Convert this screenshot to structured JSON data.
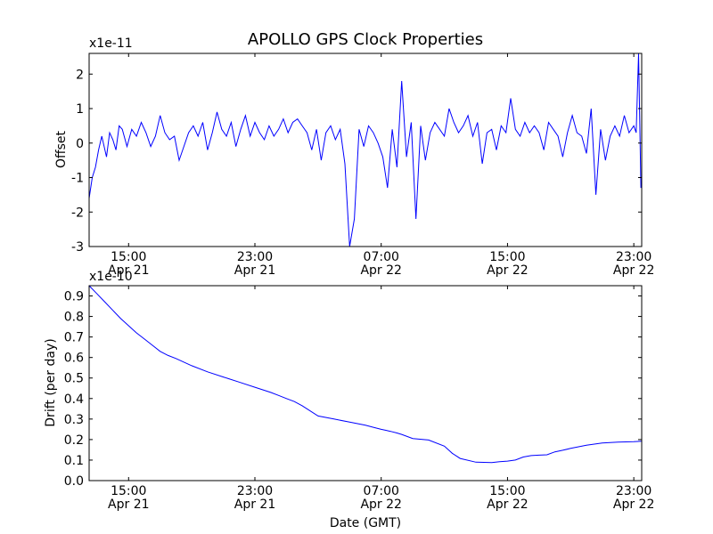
{
  "figure": {
    "title": "APOLLO GPS Clock Properties",
    "xlabel": "Date (GMT)",
    "line_color": "#0000ff"
  },
  "chart_data": [
    {
      "type": "line",
      "id": "offset",
      "title": "APOLLO GPS Clock Properties",
      "ylabel": "Offset",
      "xlabel": "",
      "scale_label": "x1e-11",
      "x_unit": "hours since 2:00 GMT Apr 21 (x-axis spans 12:30 Apr 21 to 23:30 Apr 22)",
      "xlim": [
        10.5,
        45.5
      ],
      "ylim": [
        -3,
        2.6
      ],
      "yticks": [
        -3,
        -2,
        -1,
        0,
        1,
        2
      ],
      "ytick_labels": [
        "-3",
        "-2",
        "-1",
        "0",
        "1",
        "2"
      ],
      "xticks": [
        {
          "x": 13,
          "time": "15:00",
          "date": "Apr 21"
        },
        {
          "x": 21,
          "time": "23:00",
          "date": "Apr 21"
        },
        {
          "x": 29,
          "time": "07:00",
          "date": "Apr 22"
        },
        {
          "x": 37,
          "time": "15:00",
          "date": "Apr 22"
        },
        {
          "x": 45,
          "time": "23:00",
          "date": "Apr 22"
        }
      ],
      "series": [
        {
          "name": "offset",
          "x": [
            10.5,
            10.7,
            10.9,
            11.1,
            11.3,
            11.6,
            11.8,
            12.0,
            12.2,
            12.4,
            12.6,
            12.9,
            13.2,
            13.5,
            13.8,
            14.1,
            14.4,
            14.7,
            15.0,
            15.3,
            15.6,
            15.9,
            16.2,
            16.5,
            16.8,
            17.1,
            17.4,
            17.7,
            18.0,
            18.3,
            18.6,
            18.9,
            19.2,
            19.5,
            19.8,
            20.1,
            20.4,
            20.7,
            21.0,
            21.3,
            21.6,
            21.9,
            22.2,
            22.5,
            22.8,
            23.1,
            23.4,
            23.7,
            24.0,
            24.3,
            24.6,
            24.9,
            25.2,
            25.5,
            25.8,
            26.1,
            26.4,
            26.7,
            27.0,
            27.3,
            27.6,
            27.9,
            28.2,
            28.5,
            28.8,
            29.1,
            29.4,
            29.7,
            30.0,
            30.3,
            30.6,
            30.9,
            31.2,
            31.5,
            31.8,
            32.1,
            32.4,
            32.7,
            33.0,
            33.3,
            33.6,
            33.9,
            34.2,
            34.5,
            34.8,
            35.1,
            35.4,
            35.7,
            36.0,
            36.3,
            36.6,
            36.9,
            37.2,
            37.5,
            37.8,
            38.1,
            38.4,
            38.7,
            39.0,
            39.3,
            39.6,
            39.9,
            40.2,
            40.5,
            40.8,
            41.1,
            41.4,
            41.7,
            42.0,
            42.3,
            42.6,
            42.9,
            43.2,
            43.5,
            43.8,
            44.1,
            44.4,
            44.7,
            45.0,
            45.15,
            45.3,
            45.45
          ],
          "values": [
            -1.6,
            -1.0,
            -0.7,
            -0.2,
            0.2,
            -0.4,
            0.3,
            0.1,
            -0.2,
            0.5,
            0.4,
            -0.1,
            0.4,
            0.2,
            0.6,
            0.3,
            -0.1,
            0.2,
            0.8,
            0.3,
            0.1,
            0.2,
            -0.5,
            -0.1,
            0.3,
            0.5,
            0.2,
            0.6,
            -0.2,
            0.3,
            0.9,
            0.4,
            0.2,
            0.6,
            -0.1,
            0.4,
            0.8,
            0.2,
            0.6,
            0.3,
            0.1,
            0.5,
            0.2,
            0.4,
            0.7,
            0.3,
            0.6,
            0.7,
            0.5,
            0.3,
            -0.2,
            0.4,
            -0.5,
            0.3,
            0.5,
            0.1,
            0.4,
            -0.6,
            -3.0,
            -2.2,
            0.4,
            -0.1,
            0.5,
            0.3,
            0.0,
            -0.4,
            -1.3,
            0.4,
            -0.7,
            1.8,
            -0.4,
            0.6,
            -2.2,
            0.5,
            -0.5,
            0.3,
            0.6,
            0.4,
            0.2,
            1.0,
            0.6,
            0.3,
            0.5,
            0.8,
            0.2,
            0.6,
            -0.6,
            0.3,
            0.4,
            -0.2,
            0.5,
            0.3,
            1.3,
            0.4,
            0.2,
            0.6,
            0.3,
            0.5,
            0.3,
            -0.2,
            0.6,
            0.4,
            0.2,
            -0.4,
            0.3,
            0.8,
            0.3,
            0.2,
            -0.3,
            1.0,
            -1.5,
            0.4,
            -0.5,
            0.2,
            0.5,
            0.2,
            0.8,
            0.3,
            0.5,
            0.3,
            2.6,
            -1.3
          ]
        }
      ]
    },
    {
      "type": "line",
      "id": "drift",
      "title": "",
      "ylabel": "Drift (per day)",
      "xlabel": "Date (GMT)",
      "scale_label": "x1e-10",
      "xlim": [
        10.5,
        45.5
      ],
      "ylim": [
        0.0,
        0.95
      ],
      "yticks": [
        0.0,
        0.1,
        0.2,
        0.3,
        0.4,
        0.5,
        0.6,
        0.7,
        0.8,
        0.9
      ],
      "ytick_labels": [
        "0.0",
        "0.1",
        "0.2",
        "0.3",
        "0.4",
        "0.5",
        "0.6",
        "0.7",
        "0.8",
        "0.9"
      ],
      "xticks": [
        {
          "x": 13,
          "time": "15:00",
          "date": "Apr 21"
        },
        {
          "x": 21,
          "time": "23:00",
          "date": "Apr 21"
        },
        {
          "x": 29,
          "time": "07:00",
          "date": "Apr 22"
        },
        {
          "x": 37,
          "time": "15:00",
          "date": "Apr 22"
        },
        {
          "x": 45,
          "time": "23:00",
          "date": "Apr 22"
        }
      ],
      "series": [
        {
          "name": "drift",
          "x": [
            10.5,
            11.0,
            11.5,
            12.0,
            12.5,
            13.0,
            13.5,
            14.0,
            14.5,
            15.0,
            15.5,
            16.0,
            17.0,
            18.0,
            19.0,
            20.0,
            21.0,
            22.0,
            22.5,
            23.0,
            23.5,
            24.0,
            25.0,
            26.0,
            27.0,
            28.0,
            28.5,
            29.0,
            29.3,
            29.6,
            30.0,
            30.3,
            31.0,
            32.0,
            33.0,
            33.5,
            34.0,
            35.0,
            36.0,
            36.5,
            37.0,
            37.5,
            38.0,
            38.5,
            39.0,
            39.5,
            40.0,
            40.5,
            41.0,
            42.0,
            43.0,
            44.0,
            45.0,
            45.5
          ],
          "values": [
            0.95,
            0.91,
            0.87,
            0.83,
            0.79,
            0.755,
            0.72,
            0.69,
            0.66,
            0.63,
            0.61,
            0.595,
            0.56,
            0.53,
            0.505,
            0.48,
            0.455,
            0.43,
            0.415,
            0.4,
            0.385,
            0.365,
            0.315,
            0.3,
            0.285,
            0.27,
            0.26,
            0.25,
            0.245,
            0.24,
            0.232,
            0.225,
            0.205,
            0.198,
            0.168,
            0.133,
            0.108,
            0.09,
            0.088,
            0.092,
            0.095,
            0.1,
            0.115,
            0.122,
            0.124,
            0.126,
            0.14,
            0.148,
            0.157,
            0.172,
            0.183,
            0.188,
            0.19,
            0.192
          ]
        }
      ]
    }
  ]
}
